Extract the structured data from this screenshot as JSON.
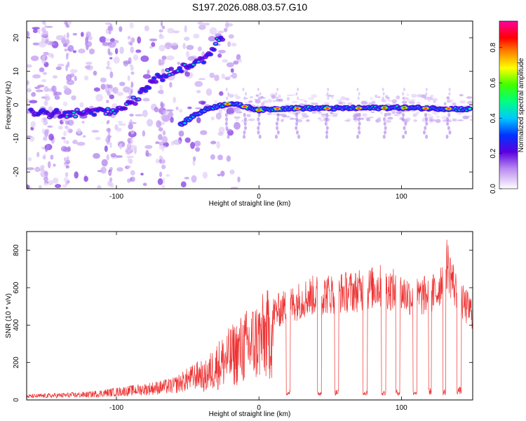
{
  "title": "S197.2026.088.03.57.G10",
  "chart_data": [
    {
      "type": "heatmap",
      "name": "spectrogram",
      "xlabel": "Height of straight line (km)",
      "ylabel": "Frequency (Hz)",
      "xlim": [
        -163,
        150
      ],
      "ylim": [
        -25,
        25
      ],
      "xticks": [
        -100,
        0,
        100
      ],
      "yticks": [
        -20,
        -10,
        0,
        10,
        20
      ],
      "colorbar": {
        "label": "Normalized spectral amplitude",
        "range": [
          0,
          0.95
        ],
        "ticks": [
          "0.0",
          "0.2",
          "0.4",
          "0.6",
          "0.8"
        ],
        "tick_values": [
          0.0,
          0.2,
          0.4,
          0.6,
          0.8
        ]
      },
      "main_track": [
        {
          "x": -160,
          "f": -2.5
        },
        {
          "x": -120,
          "f": -2.5
        },
        {
          "x": -100,
          "f": -1.5
        },
        {
          "x": -85,
          "f": 2
        },
        {
          "x": -75,
          "f": 7
        },
        {
          "x": -60,
          "f": 10
        },
        {
          "x": -40,
          "f": 13
        },
        {
          "x": -25,
          "f": 21
        }
      ],
      "secondary_track": [
        {
          "x": -55,
          "f": -6
        },
        {
          "x": -45,
          "f": -3
        },
        {
          "x": -35,
          "f": -1
        },
        {
          "x": -20,
          "f": 0.5
        },
        {
          "x": 0,
          "f": -1.5
        },
        {
          "x": 20,
          "f": -1
        },
        {
          "x": 60,
          "f": -1
        },
        {
          "x": 100,
          "f": -0.8
        },
        {
          "x": 148,
          "f": -1.3
        }
      ],
      "peaks_x": [
        -22,
        -10,
        0,
        13,
        27,
        48,
        70,
        88,
        102,
        117,
        133
      ]
    },
    {
      "type": "line",
      "name": "snr",
      "xlabel": "Height of straight line (km)",
      "ylabel": "SNR (10 * v/v)",
      "xlim": [
        -163,
        150
      ],
      "ylim": [
        0,
        900
      ],
      "xticks": [
        -100,
        0,
        100
      ],
      "yticks": [
        0,
        200,
        400,
        600,
        800
      ],
      "color": "#ee3333",
      "envelope": [
        {
          "x": -163,
          "y": 20
        },
        {
          "x": -120,
          "y": 30
        },
        {
          "x": -100,
          "y": 45
        },
        {
          "x": -80,
          "y": 60
        },
        {
          "x": -60,
          "y": 80
        },
        {
          "x": -40,
          "y": 150
        },
        {
          "x": -30,
          "y": 260
        },
        {
          "x": -20,
          "y": 330
        },
        {
          "x": -10,
          "y": 400
        },
        {
          "x": 0,
          "y": 460
        },
        {
          "x": 10,
          "y": 520
        },
        {
          "x": 20,
          "y": 560
        },
        {
          "x": 35,
          "y": 620
        },
        {
          "x": 55,
          "y": 640
        },
        {
          "x": 70,
          "y": 650
        },
        {
          "x": 85,
          "y": 680
        },
        {
          "x": 100,
          "y": 640
        },
        {
          "x": 110,
          "y": 610
        },
        {
          "x": 125,
          "y": 640
        },
        {
          "x": 132,
          "y": 820
        },
        {
          "x": 140,
          "y": 600
        },
        {
          "x": 150,
          "y": 520
        }
      ],
      "dropouts": [
        {
          "x0": 19,
          "x1": 22,
          "y": 40
        },
        {
          "x0": 41,
          "x1": 44,
          "y": 35
        },
        {
          "x0": 53,
          "x1": 56,
          "y": 40
        },
        {
          "x0": 73,
          "x1": 76,
          "y": 40
        },
        {
          "x0": 86,
          "x1": 89,
          "y": 35
        },
        {
          "x0": 96,
          "x1": 99,
          "y": 40
        },
        {
          "x0": 108,
          "x1": 111,
          "y": 40
        },
        {
          "x0": 119,
          "x1": 121,
          "y": 45
        },
        {
          "x0": 129,
          "x1": 131,
          "y": 40
        },
        {
          "x0": 139,
          "x1": 142,
          "y": 50
        }
      ]
    }
  ]
}
